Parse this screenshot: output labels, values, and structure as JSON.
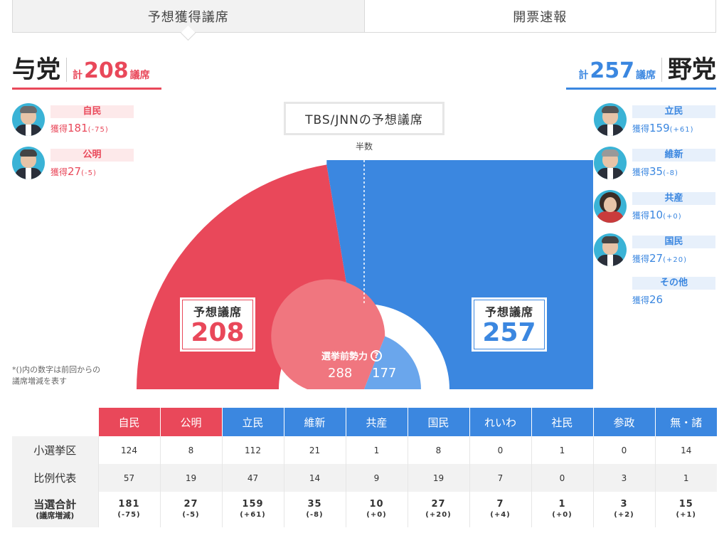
{
  "tabs": [
    {
      "label": "予想獲得議席",
      "active": true
    },
    {
      "label": "開票速報",
      "active": false
    }
  ],
  "ruling": {
    "name": "与党",
    "total_prefix": "計",
    "total": "208",
    "total_suffix": "議席",
    "color": "#e9485a",
    "parties": [
      {
        "label": "自民",
        "seats_prefix": "獲得",
        "seats": "181",
        "diff": "(-75)"
      },
      {
        "label": "公明",
        "seats_prefix": "獲得",
        "seats": "27",
        "diff": "(-5)"
      }
    ]
  },
  "opposition": {
    "name": "野党",
    "total_prefix": "計",
    "total": "257",
    "total_suffix": "議席",
    "color": "#3b87e0",
    "parties": [
      {
        "label": "立民",
        "seats_prefix": "獲得",
        "seats": "159",
        "diff": "(+61)"
      },
      {
        "label": "維新",
        "seats_prefix": "獲得",
        "seats": "35",
        "diff": "(-8)"
      },
      {
        "label": "共産",
        "seats_prefix": "獲得",
        "seats": "10",
        "diff": "(+0)"
      },
      {
        "label": "国民",
        "seats_prefix": "獲得",
        "seats": "27",
        "diff": "(+20)"
      },
      {
        "label": "その他",
        "seats_prefix": "獲得",
        "seats": "26",
        "diff": ""
      }
    ]
  },
  "chart": {
    "title": "TBS/JNNの予想議席",
    "half_label": "半数",
    "left_box_label": "予想議席",
    "left_box_value": "208",
    "right_box_label": "予想議席",
    "right_box_value": "257",
    "pre_label": "選挙前勢力",
    "pre_help": "?",
    "pre_left": "288",
    "pre_right": "177"
  },
  "chart_data": {
    "type": "pie",
    "title": "TBS/JNNの予想議席",
    "shape": "semicircle",
    "total_seats": 465,
    "majority": 233,
    "series": [
      {
        "name": "予想議席",
        "values": [
          208,
          257
        ]
      },
      {
        "name": "選挙前勢力",
        "values": [
          288,
          177
        ]
      }
    ],
    "categories": [
      "与党",
      "野党"
    ],
    "colors": [
      "#e9485a",
      "#3b87e0"
    ]
  },
  "note": {
    "line1": "*()内の数字は前回からの",
    "line2": "議席増減を表す"
  },
  "table": {
    "headers": [
      {
        "label": "自民",
        "side": "r"
      },
      {
        "label": "公明",
        "side": "r"
      },
      {
        "label": "立民",
        "side": "b"
      },
      {
        "label": "維新",
        "side": "b"
      },
      {
        "label": "共産",
        "side": "b"
      },
      {
        "label": "国民",
        "side": "b"
      },
      {
        "label": "れいわ",
        "side": "b"
      },
      {
        "label": "社民",
        "side": "b"
      },
      {
        "label": "参政",
        "side": "b"
      },
      {
        "label": "無・諸",
        "side": "b"
      }
    ],
    "rows": [
      {
        "label": "小選挙区",
        "cells": [
          "124",
          "8",
          "112",
          "21",
          "1",
          "8",
          "0",
          "1",
          "0",
          "14"
        ]
      },
      {
        "label": "比例代表",
        "cells": [
          "57",
          "19",
          "47",
          "14",
          "9",
          "19",
          "7",
          "0",
          "3",
          "1"
        ]
      }
    ],
    "total_row": {
      "label": "当選合計",
      "sublabel": "(議席増減)",
      "cells": [
        "181",
        "27",
        "159",
        "35",
        "10",
        "27",
        "7",
        "1",
        "3",
        "15"
      ],
      "diffs": [
        "(-75)",
        "(-5)",
        "(+61)",
        "(-8)",
        "(+0)",
        "(+20)",
        "(+4)",
        "(+0)",
        "(+2)",
        "(+1)"
      ]
    }
  }
}
